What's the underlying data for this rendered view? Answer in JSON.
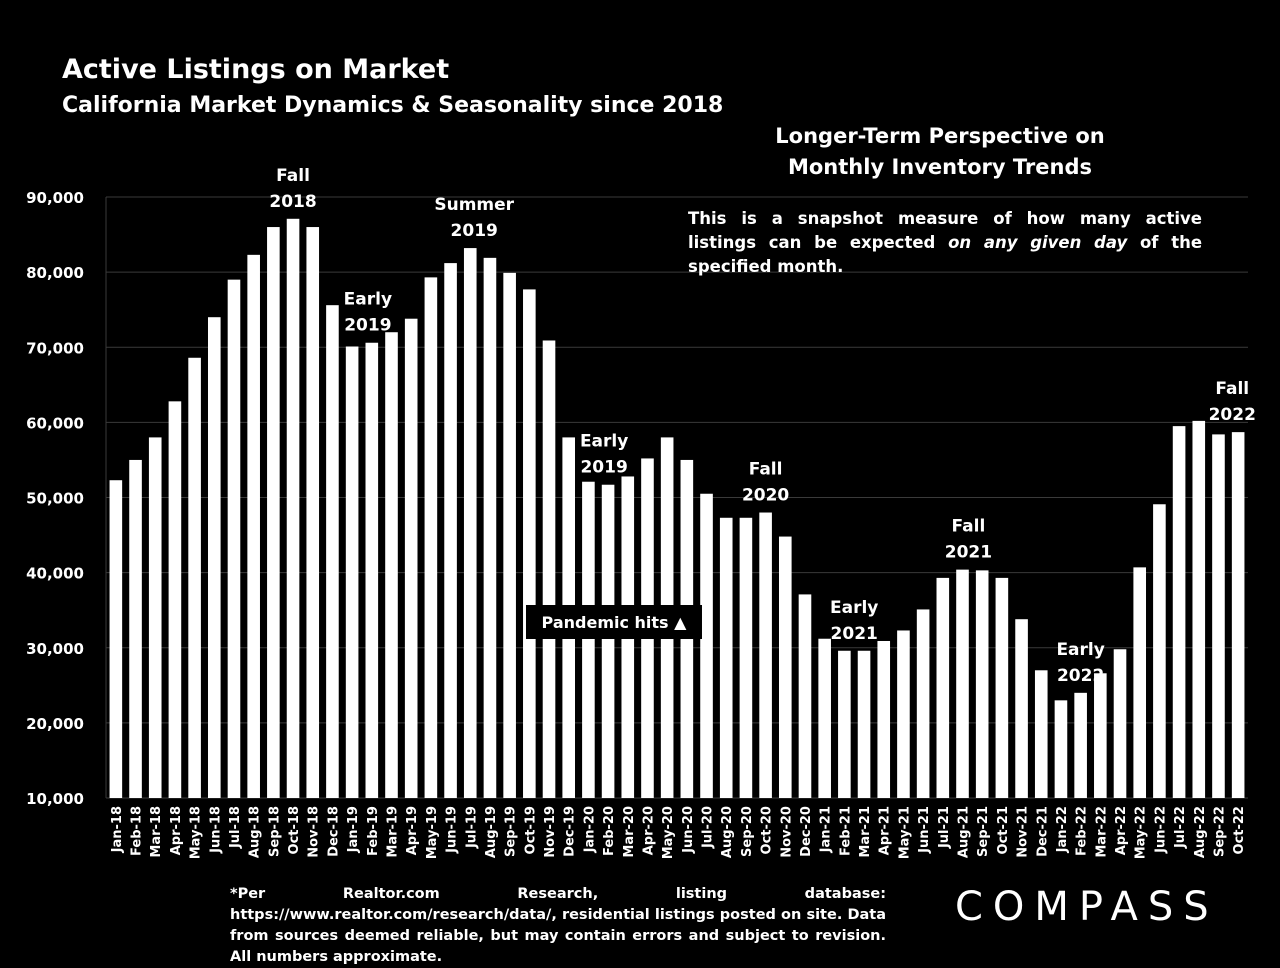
{
  "header": {
    "title": "Active Listings on Market",
    "subtitle": "California Market Dynamics & Seasonality since 2018"
  },
  "notes": {
    "perspective_line1": "Longer-Term Perspective on",
    "perspective_line2": "Monthly Inventory Trends",
    "snapshot_pre": "This is a snapshot measure of how many active listings can be expected ",
    "snapshot_em": "on any given day",
    "snapshot_post": " of the specified month."
  },
  "footnote": "*Per Realtor.com Research, listing database:  https://www.realtor.com/research/data/, residential listings posted on site. Data from sources deemed reliable, but may contain errors and subject to revision. All numbers approximate.",
  "logo": {
    "text": "COMPASS"
  },
  "colors": {
    "background": "#000000",
    "bar": "#ffffff",
    "text": "#ffffff",
    "grid": "#3a3a3a"
  },
  "chart_data": {
    "type": "bar",
    "title": "Active Listings on Market",
    "xlabel": "",
    "ylabel": "",
    "ylim": [
      10000,
      90000
    ],
    "yticks": [
      "10,000",
      "20,000",
      "30,000",
      "40,000",
      "50,000",
      "60,000",
      "70,000",
      "80,000",
      "90,000"
    ],
    "ytick_values": [
      10000,
      20000,
      30000,
      40000,
      50000,
      60000,
      70000,
      80000,
      90000
    ],
    "grid": true,
    "categories": [
      "Jan-18",
      "Feb-18",
      "Mar-18",
      "Apr-18",
      "May-18",
      "Jun-18",
      "Jul-18",
      "Aug-18",
      "Sep-18",
      "Oct-18",
      "Nov-18",
      "Dec-18",
      "Jan-19",
      "Feb-19",
      "Mar-19",
      "Apr-19",
      "May-19",
      "Jun-19",
      "Jul-19",
      "Aug-19",
      "Sep-19",
      "Oct-19",
      "Nov-19",
      "Dec-19",
      "Jan-20",
      "Feb-20",
      "Mar-20",
      "Apr-20",
      "May-20",
      "Jun-20",
      "Jul-20",
      "Aug-20",
      "Sep-20",
      "Oct-20",
      "Nov-20",
      "Dec-20",
      "Jan-21",
      "Feb-21",
      "Mar-21",
      "Apr-21",
      "May-21",
      "Jun-21",
      "Jul-21",
      "Aug-21",
      "Sep-21",
      "Oct-21",
      "Nov-21",
      "Dec-21",
      "Jan-22",
      "Feb-22",
      "Mar-22",
      "Apr-22",
      "May-22",
      "Jun-22",
      "Jul-22",
      "Aug-22",
      "Sep-22",
      "Oct-22"
    ],
    "values": [
      52300,
      55000,
      58000,
      62800,
      68600,
      74000,
      79000,
      82300,
      86000,
      87100,
      86000,
      75600,
      70100,
      70600,
      72000,
      73800,
      79300,
      81200,
      83200,
      81900,
      79900,
      77700,
      70900,
      58000,
      52100,
      51700,
      52800,
      55200,
      58000,
      55000,
      50500,
      47300,
      47300,
      48000,
      44800,
      37100,
      31200,
      29600,
      29600,
      30900,
      32300,
      35100,
      39300,
      40400,
      40300,
      39300,
      33800,
      27000,
      23000,
      24000,
      26600,
      29800,
      40700,
      49100,
      59500,
      60200,
      58400,
      58700
    ],
    "annotations": [
      {
        "lines": [
          "Fall",
          "2018"
        ],
        "index": 9
      },
      {
        "lines": [
          "Early",
          "2019"
        ],
        "index": 12.8
      },
      {
        "lines": [
          "Summer",
          "2019"
        ],
        "index": 18.2
      },
      {
        "lines": [
          "Early",
          "2019"
        ],
        "index": 24.8
      },
      {
        "lines": [
          "Fall",
          "2020"
        ],
        "index": 33
      },
      {
        "lines": [
          "Early",
          "2021"
        ],
        "index": 37.5
      },
      {
        "lines": [
          "Fall",
          "2021"
        ],
        "index": 43.3
      },
      {
        "lines": [
          "Early",
          "2022"
        ],
        "index": 49
      },
      {
        "lines": [
          "Fall",
          "2022"
        ],
        "index": 56.7
      }
    ],
    "callout": {
      "text": "Pandemic hits ▲",
      "index": 25.3
    }
  }
}
